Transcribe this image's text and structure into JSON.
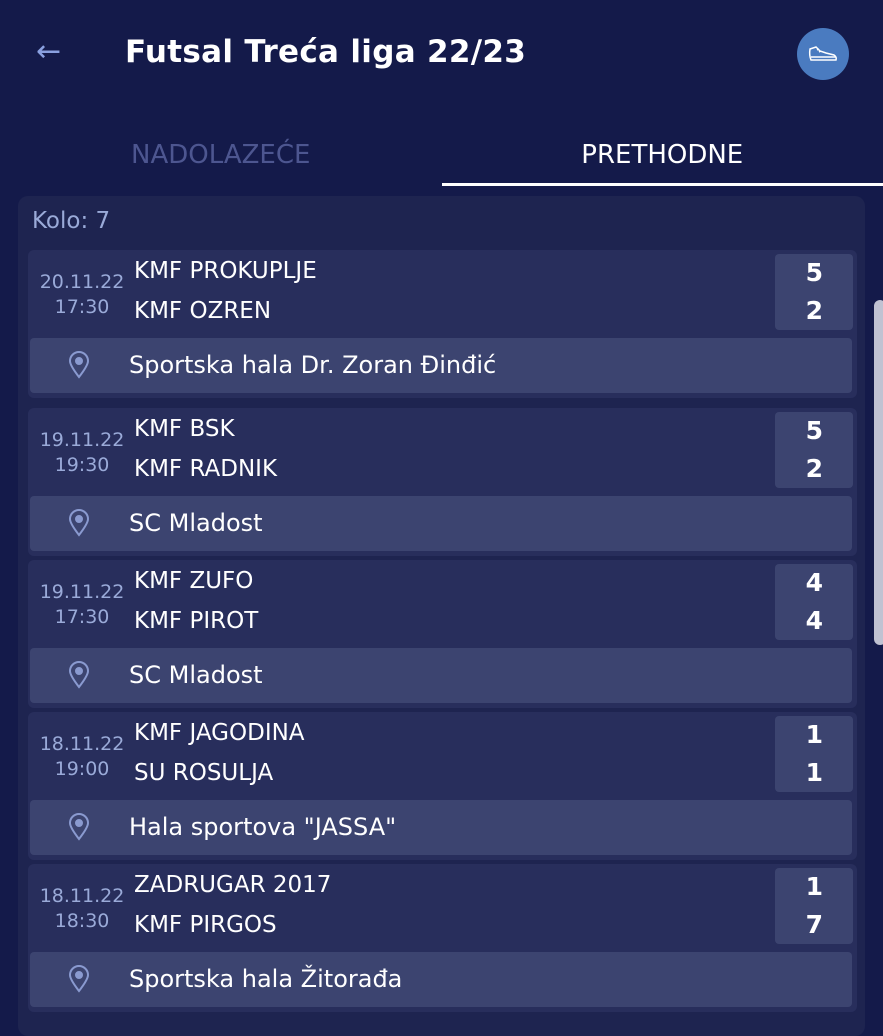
{
  "header": {
    "title": "Futsal Treća liga 22/23",
    "back_icon": "arrow-left-icon",
    "action_icon": "sneaker-icon"
  },
  "tabs": [
    {
      "label": "NADOLAZEĆE",
      "active": false
    },
    {
      "label": "PRETHODNE",
      "active": true
    }
  ],
  "round_label": "Kolo: 7",
  "matches": [
    {
      "date": "20.11.22",
      "time": "17:30",
      "home": "KMF PROKUPLJE",
      "away": "KMF OZREN",
      "home_score": "5",
      "away_score": "2",
      "venue": "Sportska hala Dr. Zoran Đinđić"
    },
    {
      "date": "19.11.22",
      "time": "19:30",
      "home": "KMF BSK",
      "away": "KMF RADNIK",
      "home_score": "5",
      "away_score": "2",
      "venue": "SC Mladost"
    },
    {
      "date": "19.11.22",
      "time": "17:30",
      "home": "KMF ZUFO",
      "away": "KMF PIROT",
      "home_score": "4",
      "away_score": "4",
      "venue": "SC Mladost"
    },
    {
      "date": "18.11.22",
      "time": "19:00",
      "home": "KMF JAGODINA",
      "away": "SU ROSULJA",
      "home_score": "1",
      "away_score": "1",
      "venue": "Hala sportova \"JASSA\""
    },
    {
      "date": "18.11.22",
      "time": "18:30",
      "home": "ZADRUGAR 2017",
      "away": "KMF PIRGOS",
      "home_score": "1",
      "away_score": "7",
      "venue": "Sportska hala Žitorađa"
    }
  ]
}
